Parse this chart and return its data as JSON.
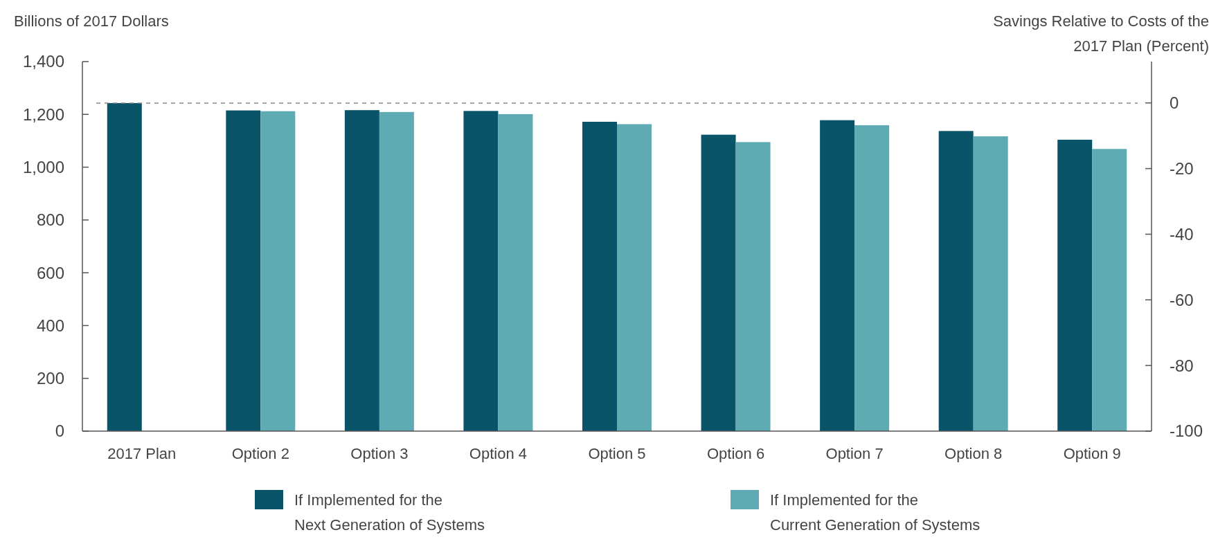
{
  "chart_data": {
    "type": "bar",
    "ylabel": "Billions of 2017 Dollars",
    "y2label": "Savings Relative to Costs of the 2017 Plan (Percent)",
    "categories": [
      "2017 Plan",
      "Option 2",
      "Option 3",
      "Option 4",
      "Option 5",
      "Option 6",
      "Option 7",
      "Option 8",
      "Option 9"
    ],
    "series": [
      {
        "name": "If Implemented for the Next Generation of Systems",
        "color": "#0a5469",
        "values": [
          1243,
          1215,
          1216,
          1213,
          1172,
          1123,
          1178,
          1137,
          1104
        ]
      },
      {
        "name": "If Implemented for the Current Generation of Systems",
        "color": "#5eabb4",
        "values": [
          null,
          1212,
          1209,
          1201,
          1163,
          1095,
          1159,
          1117,
          1069
        ]
      }
    ],
    "ylim": [
      0,
      1400
    ],
    "yticks": [
      0,
      {
        "value": 200,
        "label": "200"
      },
      {
        "value": 400,
        "label": "400"
      },
      {
        "value": 600,
        "label": "600"
      },
      {
        "value": 800,
        "label": "800"
      },
      {
        "value": 1000,
        "label": "1,000"
      },
      {
        "value": 1200,
        "label": "1,200"
      },
      {
        "value": 1400,
        "label": "1,400"
      }
    ],
    "y2lim": [
      -100,
      12.6
    ],
    "y2ticks": [
      -100,
      -80,
      -60,
      -40,
      -20,
      0
    ],
    "ref_lines": [
      {
        "axis": "y",
        "value": 1243,
        "color": "#888888",
        "line_style": "dashed"
      }
    ],
    "grid": false,
    "legend": "bottom"
  }
}
